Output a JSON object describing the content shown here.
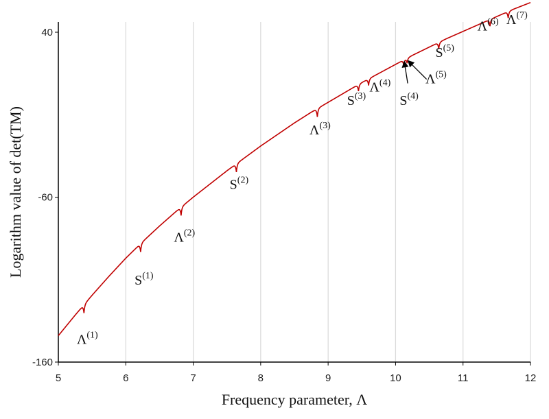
{
  "chart_data": {
    "type": "line",
    "title": "",
    "xlabel": "Frequency parameter, Λ",
    "ylabel": "Logarithm value of  det(TM)",
    "xlim": [
      5,
      12
    ],
    "ylim": [
      -160,
      40
    ],
    "xticks": [
      5,
      6,
      7,
      8,
      9,
      10,
      11,
      12
    ],
    "yticks": [
      -160,
      -60,
      40
    ],
    "grid": {
      "vertical": true,
      "horizontal": false,
      "color": "#d9d9d9"
    },
    "colors": {
      "line": "#c00000",
      "axis": "#000000",
      "grid": "#d9d9d9"
    },
    "series": [
      {
        "x": [
          5.0,
          5.25,
          5.5,
          5.75,
          6.0,
          6.25,
          6.5,
          6.75,
          7.0,
          7.25,
          7.5,
          7.75,
          8.0,
          8.25,
          8.5,
          8.75,
          9.0,
          9.25,
          9.5,
          9.75,
          10.0,
          10.25,
          10.5,
          10.75,
          11.0,
          11.25,
          11.5,
          11.75,
          12.0
        ],
        "values": [
          -144,
          -131.5,
          -119.5,
          -108,
          -97,
          -87,
          -77.5,
          -68.5,
          -60,
          -52,
          -44,
          -36.5,
          -29,
          -22,
          -15,
          -8.5,
          -2.5,
          3.5,
          9.5,
          15,
          20.5,
          26,
          31,
          36,
          40.5,
          45,
          49.5,
          54,
          58
        ]
      }
    ],
    "dips": [
      {
        "x": 5.38,
        "depth": 5
      },
      {
        "x": 6.22,
        "depth": 5
      },
      {
        "x": 6.82,
        "depth": 5
      },
      {
        "x": 7.64,
        "depth": 5
      },
      {
        "x": 8.84,
        "depth": 5
      },
      {
        "x": 9.45,
        "depth": 4
      },
      {
        "x": 9.6,
        "depth": 4
      },
      {
        "x": 10.12,
        "depth": 3
      },
      {
        "x": 10.17,
        "depth": 3
      },
      {
        "x": 10.64,
        "depth": 4
      },
      {
        "x": 11.4,
        "depth": 4
      },
      {
        "x": 11.67,
        "depth": 4
      }
    ],
    "annotations": [
      {
        "base": "Λ",
        "sup": "(1)",
        "x": 5.43,
        "y": -149
      },
      {
        "base": "S",
        "sup": "(1)",
        "x": 6.27,
        "y": -113
      },
      {
        "base": "Λ",
        "sup": "(2)",
        "x": 6.87,
        "y": -87
      },
      {
        "base": "S",
        "sup": "(2)",
        "x": 7.68,
        "y": -55
      },
      {
        "base": "Λ",
        "sup": "(3)",
        "x": 8.88,
        "y": -22
      },
      {
        "base": "S",
        "sup": "(3)",
        "x": 9.42,
        "y": -4
      },
      {
        "base": "Λ",
        "sup": "(4)",
        "x": 9.77,
        "y": 4
      },
      {
        "base": "S",
        "sup": "(4)",
        "x": 10.2,
        "y": -4
      },
      {
        "base": "Λ",
        "sup": "(5)",
        "x": 10.6,
        "y": 9
      },
      {
        "base": "S",
        "sup": "(5)",
        "x": 10.73,
        "y": 25
      },
      {
        "base": "Λ",
        "sup": "(6)",
        "x": 11.37,
        "y": 41
      },
      {
        "base": "Λ",
        "sup": "(7)",
        "x": 11.8,
        "y": 45
      }
    ],
    "arrows": [
      {
        "from": [
          10.18,
          9
        ],
        "to": [
          10.13,
          22
        ]
      },
      {
        "from": [
          10.46,
          11.5
        ],
        "to": [
          10.19,
          22.5
        ]
      }
    ]
  }
}
